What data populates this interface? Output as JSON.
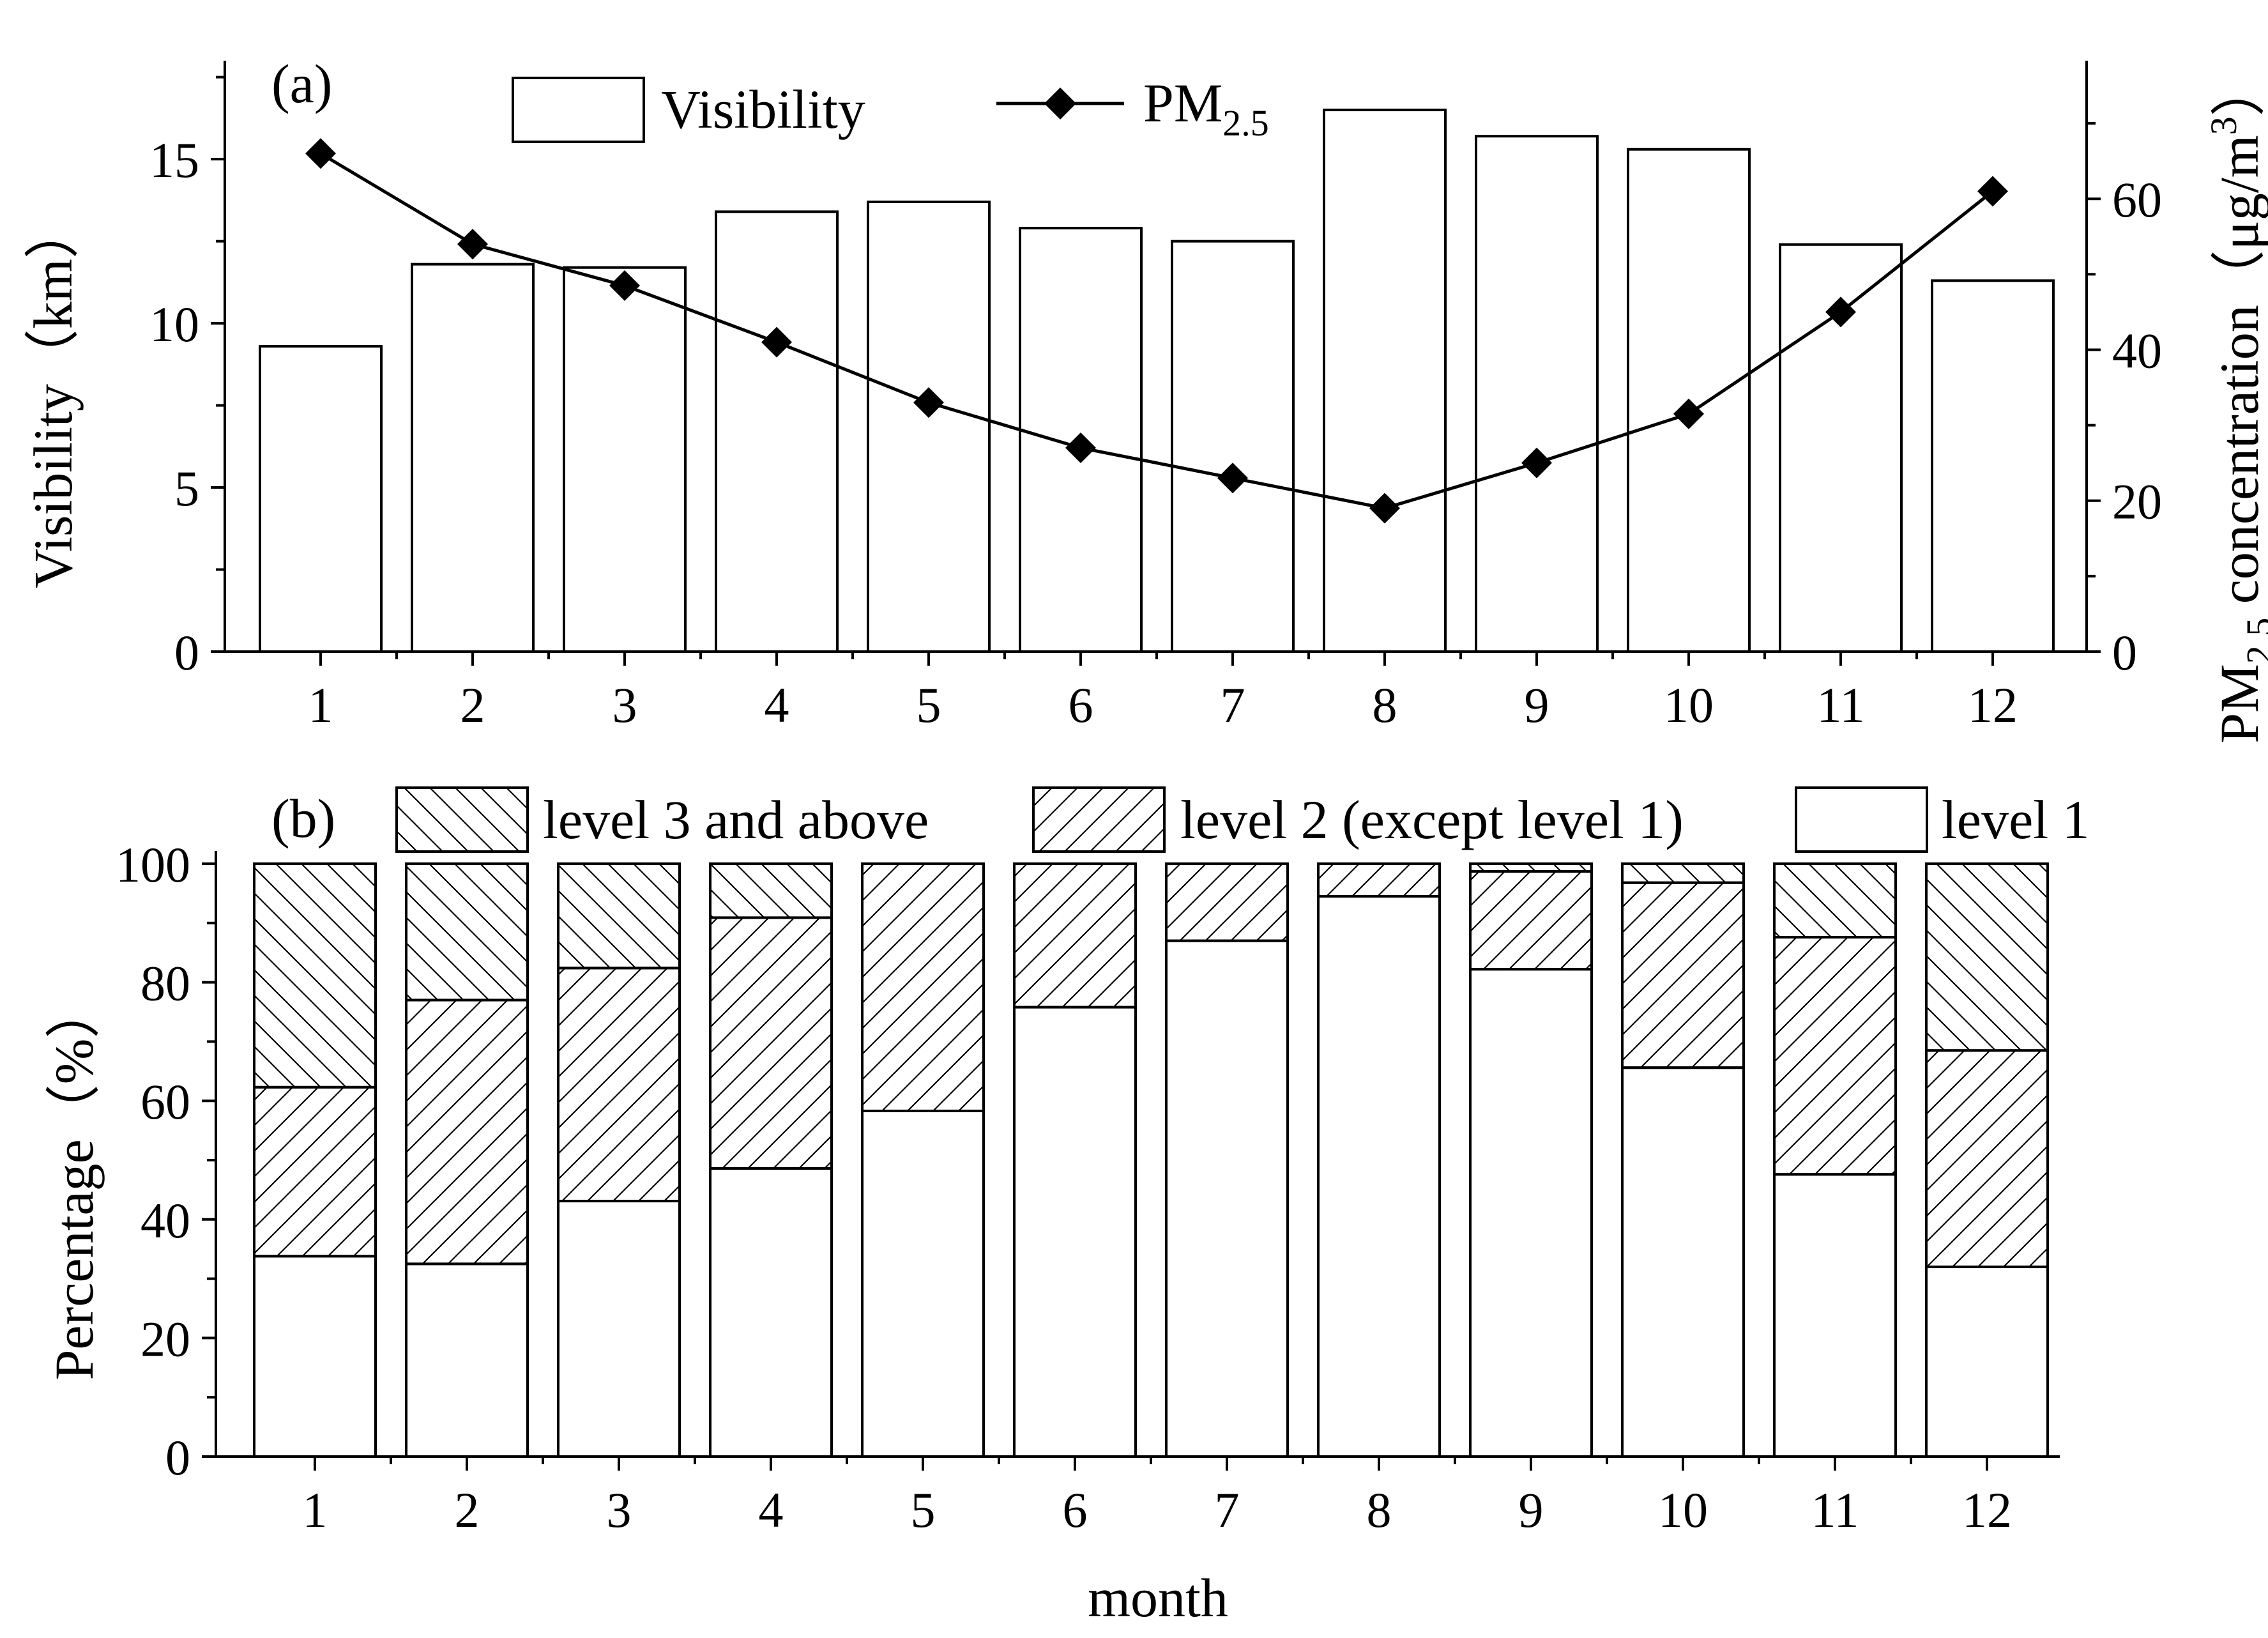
{
  "colors": {
    "ink": "#000000",
    "paper": "#ffffff"
  },
  "chart_data": [
    {
      "panel": "(a)",
      "type": "bar+line",
      "categories": [
        "1",
        "2",
        "3",
        "4",
        "5",
        "6",
        "7",
        "8",
        "9",
        "10",
        "11",
        "12"
      ],
      "series": [
        {
          "name": "Visibility",
          "axis": "left",
          "kind": "bar",
          "values": [
            9.3,
            11.8,
            11.7,
            13.4,
            13.7,
            12.9,
            12.5,
            16.5,
            15.7,
            15.3,
            12.4,
            11.3
          ]
        },
        {
          "name": "PM2.5",
          "axis": "right",
          "kind": "line",
          "marker": "diamond",
          "values": [
            66,
            54,
            48.5,
            41,
            33,
            27,
            23,
            19,
            25,
            31.5,
            45,
            61
          ]
        }
      ],
      "legend": {
        "bar_label": "Visibility",
        "line_label": "PM",
        "line_label_sub": "2.5",
        "placement": "top"
      },
      "ylabel_left": "Visibility（km）",
      "ylabel_right": {
        "prefix": "PM",
        "sub": "2.5",
        "text": " concentration（μg/m",
        "sup": "3",
        "close": "）"
      },
      "ylim_left": [
        0,
        18
      ],
      "yticks_left": [
        "0",
        "5",
        "10",
        "15"
      ],
      "ylim_right": [
        0,
        78.3
      ],
      "yticks_right": [
        "0",
        "20",
        "40",
        "60"
      ]
    },
    {
      "panel": "(b)",
      "type": "stacked-bar",
      "categories": [
        "1",
        "2",
        "3",
        "4",
        "5",
        "6",
        "7",
        "8",
        "9",
        "10",
        "11",
        "12"
      ],
      "series": [
        {
          "name": "level 1",
          "pattern": "none",
          "values": [
            33.8,
            32.5,
            43.1,
            48.6,
            58.3,
            75.8,
            87.0,
            94.5,
            82.2,
            65.6,
            47.6,
            32.0
          ]
        },
        {
          "name": "level 2 (except level 1)",
          "pattern": "forward",
          "values": [
            28.5,
            44.5,
            39.3,
            42.3,
            41.7,
            24.2,
            13.0,
            5.5,
            16.5,
            31.2,
            40.0,
            36.5
          ]
        },
        {
          "name": "level 3 and above",
          "pattern": "back",
          "values": [
            37.7,
            23.0,
            17.6,
            9.1,
            0,
            0,
            0,
            0,
            1.3,
            3.2,
            12.4,
            31.5
          ]
        }
      ],
      "legend": {
        "entries": [
          "level 3 and above",
          "level 2 (except level 1)",
          "level 1"
        ],
        "placement": "top"
      },
      "ylabel": "Percentage（%）",
      "xlabel": "month",
      "ylim": [
        0,
        100
      ],
      "yticks": [
        "0",
        "20",
        "40",
        "60",
        "80",
        "100"
      ]
    }
  ]
}
